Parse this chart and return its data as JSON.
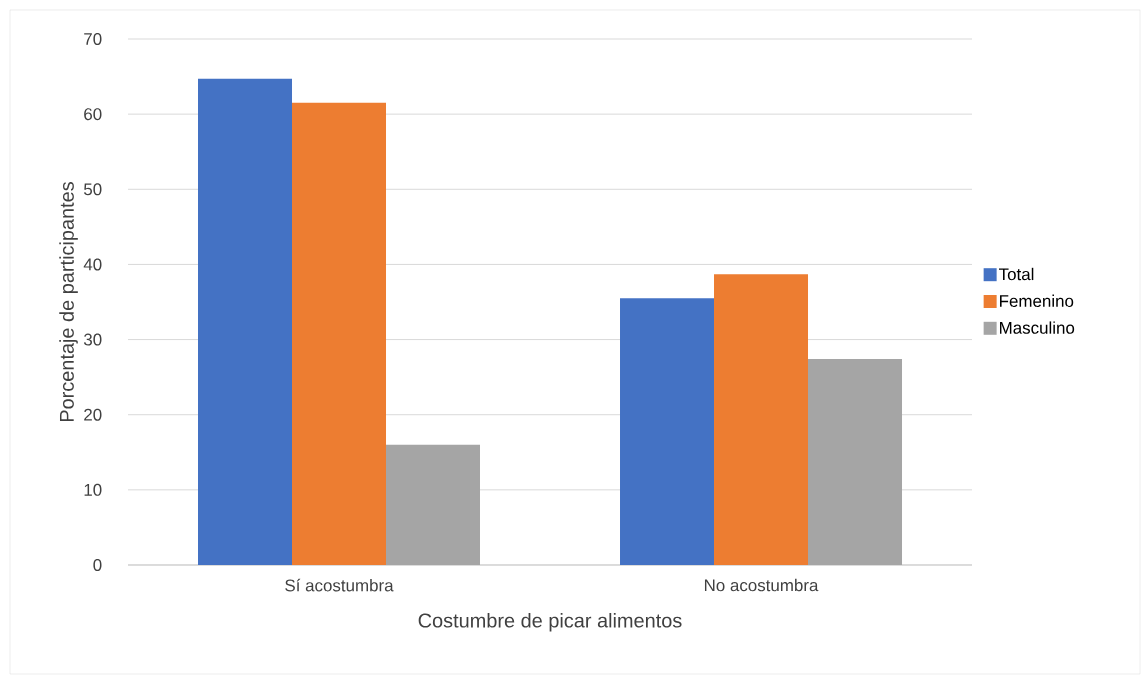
{
  "chart_data": {
    "type": "bar",
    "xlabel": "Costumbre de picar alimentos",
    "ylabel": "Porcentaje de participantes",
    "categories": [
      "Sí acostumbra",
      "No acostumbra"
    ],
    "series": [
      {
        "name": "Total",
        "color": "#4472c4",
        "values": [
          64.7,
          35.5
        ]
      },
      {
        "name": "Femenino",
        "color": "#ed7d31",
        "values": [
          61.5,
          38.7
        ]
      },
      {
        "name": "Masculino",
        "color": "#a5a5a5",
        "values": [
          16.0,
          27.4
        ]
      }
    ],
    "ylim": [
      0,
      70
    ],
    "yticks": [
      0,
      10,
      20,
      30,
      40,
      50,
      60,
      70
    ],
    "grid": "y",
    "legend": "right"
  }
}
